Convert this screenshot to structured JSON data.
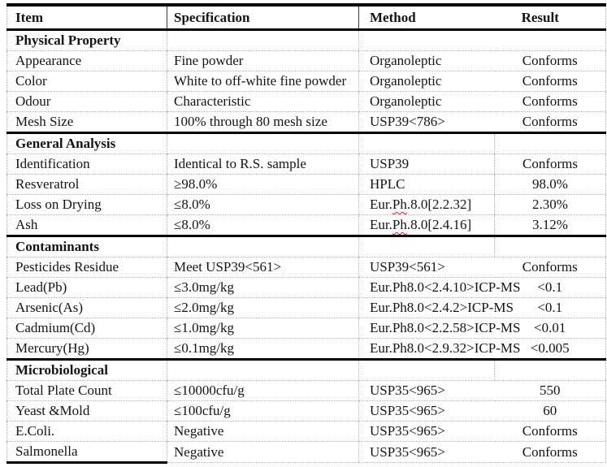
{
  "doc_type": "specification-table",
  "colors": {
    "background": "#ffffff",
    "text": "#141414",
    "heavy_border": "#000000",
    "light_border": "#b3b3b3",
    "spellcheck_underline": "#d21e1e"
  },
  "table": {
    "columns": [
      {
        "label": "Item"
      },
      {
        "label": "Specification"
      },
      {
        "label": "Method"
      },
      {
        "label": "Result"
      }
    ],
    "rows": [
      {
        "type": "section",
        "item": "Physical Property",
        "spec": "",
        "method": "",
        "result": ""
      },
      {
        "type": "data",
        "item": "Appearance",
        "spec": "Fine powder",
        "method": "Organoleptic",
        "result": "Conforms"
      },
      {
        "type": "data",
        "item": "Color",
        "spec": "White to off-white fine powder",
        "method": "Organoleptic",
        "result": "Conforms"
      },
      {
        "type": "data",
        "item": "Odour",
        "spec": "Characteristic",
        "method": "Organoleptic",
        "result": "Conforms"
      },
      {
        "type": "data",
        "item": "Mesh Size",
        "spec": "100% through 80 mesh size",
        "method": "USP39<786>",
        "result": "Conforms"
      },
      {
        "type": "section",
        "item": "General Analysis",
        "spec": "",
        "method": "",
        "result": ""
      },
      {
        "type": "data",
        "item": "Identification",
        "spec": "Identical to R.S. sample",
        "method": "USP39",
        "result": "Conforms"
      },
      {
        "type": "data",
        "item": "Resveratrol",
        "spec": "≥98.0%",
        "method": "HPLC",
        "result": "98.0%"
      },
      {
        "type": "data",
        "item": "Loss on Drying",
        "spec": "≤8.0%",
        "method": "Eur.Ph.8.0[2.2.32]",
        "method_pre": "Eur.",
        "method_mark": "Ph",
        "method_post": ".8.0[2.2.32]",
        "result": "2.30%"
      },
      {
        "type": "data",
        "item": "Ash",
        "spec": "≤8.0%",
        "method": "Eur.Ph.8.0[2.4.16]",
        "method_pre": "Eur.",
        "method_mark": "Ph",
        "method_post": ".8.0[2.4.16]",
        "result": "3.12%"
      },
      {
        "type": "section",
        "item": "Contaminants",
        "spec": "",
        "method": "",
        "result": ""
      },
      {
        "type": "data",
        "item": "Pesticides Residue",
        "spec": "Meet USP39<561>",
        "method": "USP39<561>",
        "result": "Conforms"
      },
      {
        "type": "data",
        "item": "Lead(Pb)",
        "spec": "≤3.0mg/kg",
        "method": "Eur.Ph8.0<2.4.10>ICP-MS",
        "result": "<0.1"
      },
      {
        "type": "data",
        "item": "Arsenic(As)",
        "spec": "≤2.0mg/kg",
        "method": "Eur.Ph8.0<2.4.2>ICP-MS",
        "result": "<0.1"
      },
      {
        "type": "data",
        "item": "Cadmium(Cd)",
        "spec": "≤1.0mg/kg",
        "method": "Eur.Ph8.0<2.2.58>ICP-MS",
        "result": "<0.01"
      },
      {
        "type": "data",
        "item": "Mercury(Hg)",
        "spec": "≤0.1mg/kg",
        "method": "Eur.Ph8.0<2.9.32>ICP-MS",
        "result": "<0.005"
      },
      {
        "type": "section",
        "item": "Microbiological",
        "spec": "",
        "method": "",
        "result": ""
      },
      {
        "type": "data",
        "item": "Total Plate Count",
        "spec": "≤10000cfu/g",
        "method": "USP35<965>",
        "result": "550"
      },
      {
        "type": "data",
        "item": "Yeast &Mold",
        "spec": "≤100cfu/g",
        "method": "USP35<965>",
        "result": "60"
      },
      {
        "type": "data",
        "item": "E.Coli.",
        "spec": "Negative",
        "method": "USP35<965>",
        "result": "Conforms"
      },
      {
        "type": "data",
        "item": "Salmonella",
        "spec": "Negative",
        "method": "USP35<965>",
        "result": "Conforms"
      }
    ]
  }
}
